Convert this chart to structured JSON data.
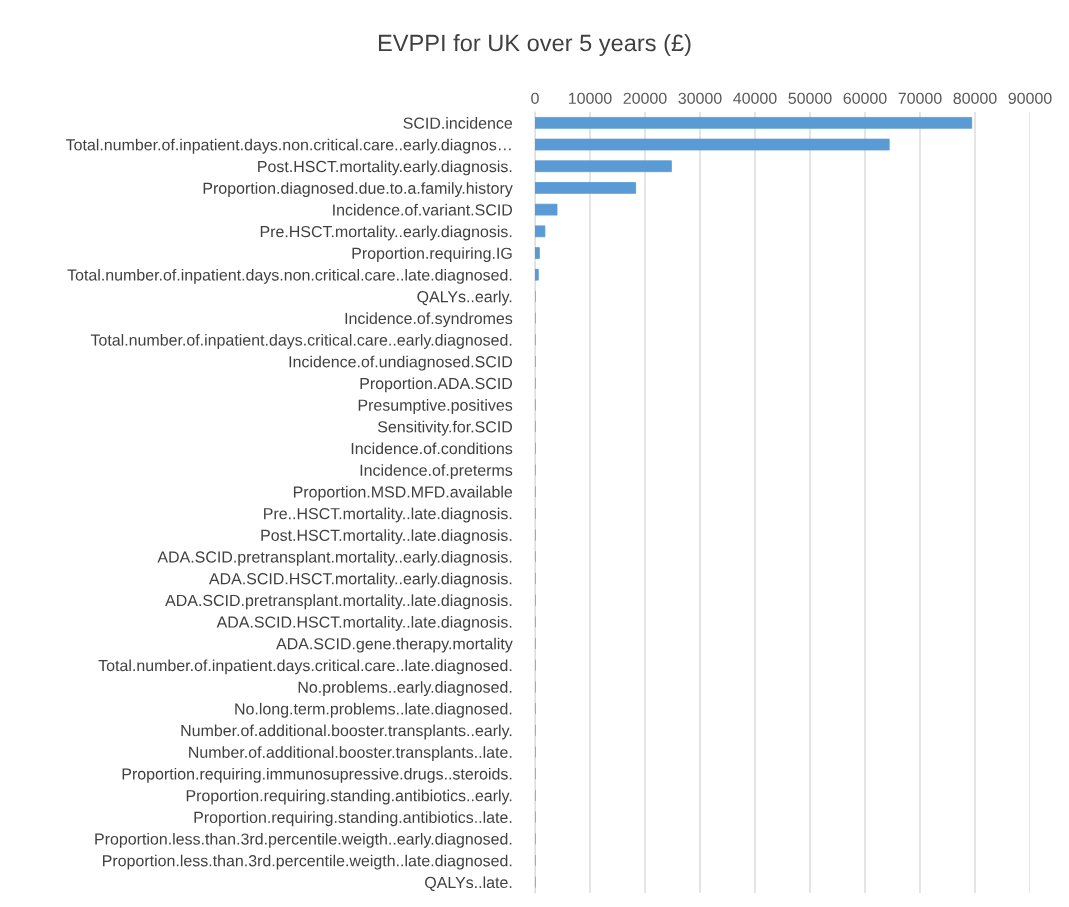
{
  "chart_data": {
    "type": "bar",
    "orientation": "horizontal",
    "title": "EVPPI for UK over 5 years (£)",
    "categories": [
      "SCID.incidence",
      "Total.number.of.inpatient.days.non.critical.care..early.diagnos…",
      "Post.HSCT.mortality.early.diagnosis.",
      "Proportion.diagnosed.due.to.a.family.history",
      "Incidence.of.variant.SCID",
      "Pre.HSCT.mortality..early.diagnosis.",
      "Proportion.requiring.IG",
      "Total.number.of.inpatient.days.non.critical.care..late.diagnosed.",
      "QALYs..early.",
      "Incidence.of.syndromes",
      "Total.number.of.inpatient.days.critical.care..early.diagnosed.",
      "Incidence.of.undiagnosed.SCID",
      "Proportion.ADA.SCID",
      "Presumptive.positives",
      "Sensitivity.for.SCID",
      "Incidence.of.conditions",
      "Incidence.of.preterms",
      "Proportion.MSD.MFD.available",
      "Pre..HSCT.mortality..late.diagnosis.",
      "Post.HSCT.mortality..late.diagnosis.",
      "ADA.SCID.pretransplant.mortality..early.diagnosis.",
      "ADA.SCID.HSCT.mortality..early.diagnosis.",
      "ADA.SCID.pretransplant.mortality..late.diagnosis.",
      "ADA.SCID.HSCT.mortality..late.diagnosis.",
      "ADA.SCID.gene.therapy.mortality",
      "Total.number.of.inpatient.days.critical.care..late.diagnosed.",
      "No.problems..early.diagnosed.",
      "No.long.term.problems..late.diagnosed.",
      "Number.of.additional.booster.transplants..early.",
      "Number.of.additional.booster.transplants..late.",
      "Proportion.requiring.immunosupressive.drugs..steroids.",
      "Proportion.requiring.standing.antibiotics..early.",
      "Proportion.requiring.standing.antibiotics..late.",
      "Proportion.less.than.3rd.percentile.weigth..early.diagnosed.",
      "Proportion.less.than.3rd.percentile.weigth..late.diagnosed.",
      "QALYs..late."
    ],
    "values": [
      79400,
      64400,
      24800,
      18300,
      4000,
      1800,
      800,
      600,
      0,
      0,
      0,
      0,
      0,
      0,
      0,
      0,
      0,
      0,
      0,
      0,
      0,
      0,
      0,
      0,
      0,
      0,
      0,
      0,
      0,
      0,
      0,
      0,
      0,
      0,
      0,
      0
    ],
    "color": "#5b9bd5",
    "xlim": [
      0,
      90000
    ],
    "xticks": [
      0,
      10000,
      20000,
      30000,
      40000,
      50000,
      60000,
      70000,
      80000,
      90000
    ],
    "grid": "x",
    "legend": false
  }
}
